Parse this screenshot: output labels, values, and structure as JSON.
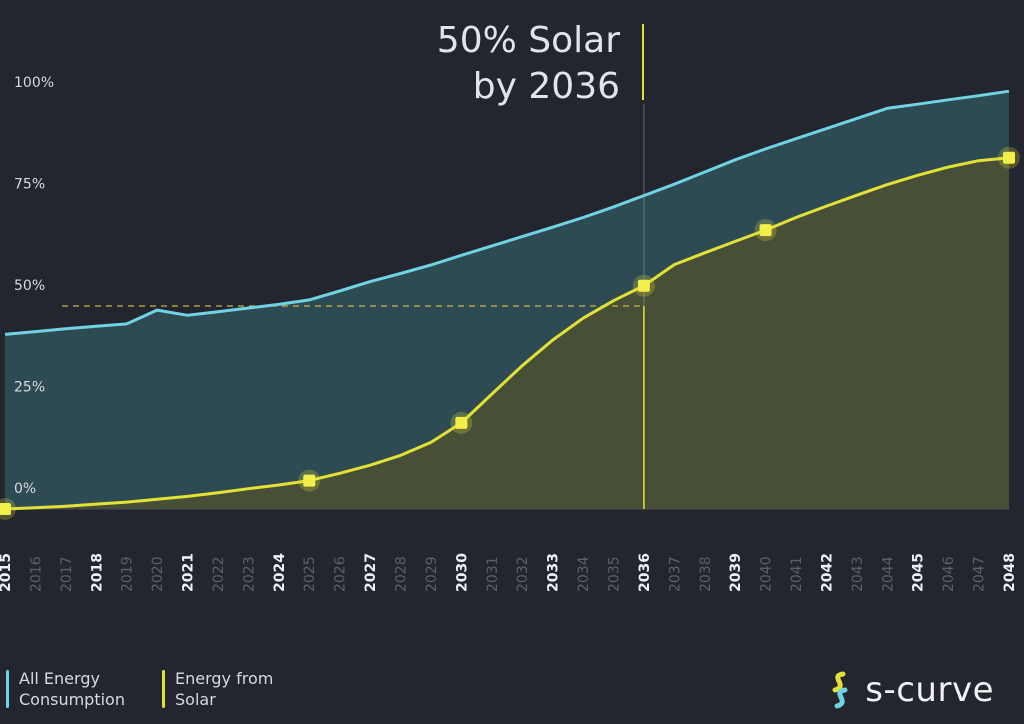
{
  "chart_data": {
    "type": "area",
    "annotation": [
      "50% Solar",
      "by 2036"
    ],
    "y_ticks": [
      "0%",
      "25%",
      "50%",
      "75%",
      "100%"
    ],
    "ylim": [
      0,
      105
    ],
    "xlim": [
      2015,
      2048
    ],
    "x_ticks": [
      "2015",
      "2016",
      "2017",
      "2018",
      "2019",
      "2020",
      "2021",
      "2022",
      "2023",
      "2024",
      "2025",
      "2026",
      "2027",
      "2028",
      "2029",
      "2030",
      "2031",
      "2032",
      "2033",
      "2034",
      "2035",
      "2036",
      "2037",
      "2038",
      "2039",
      "2040",
      "2041",
      "2042",
      "2043",
      "2044",
      "2045",
      "2046",
      "2047",
      "2048"
    ],
    "x_ticks_emphasized": [
      "2015",
      "2018",
      "2021",
      "2024",
      "2027",
      "2030",
      "2033",
      "2036",
      "2039",
      "2042",
      "2045",
      "2048"
    ],
    "reference_line": {
      "y": 50,
      "x": 2036
    },
    "series": [
      {
        "name": "All Energy Consumption",
        "color": "#6fd3e4",
        "x": [
          2015,
          2016,
          2017,
          2018,
          2019,
          2020,
          2021,
          2022,
          2023,
          2024,
          2025,
          2026,
          2027,
          2028,
          2029,
          2030,
          2031,
          2032,
          2033,
          2034,
          2035,
          2036,
          2037,
          2038,
          2039,
          2040,
          2041,
          2042,
          2043,
          2044,
          2045,
          2046,
          2047,
          2048
        ],
        "values": [
          43,
          43.7,
          44.4,
          45,
          45.6,
          49,
          47.7,
          48.6,
          49.5,
          50.4,
          51.5,
          53.7,
          56,
          58,
          60.1,
          62.5,
          64.8,
          67.1,
          69.4,
          71.8,
          74.4,
          77.2,
          80,
          83,
          86,
          88.7,
          91.2,
          93.7,
          96.2,
          98.7,
          99.7,
          100.8,
          101.8,
          102.9
        ]
      },
      {
        "name": "Energy from Solar",
        "color": "#e3e136",
        "x": [
          2015,
          2016,
          2017,
          2018,
          2019,
          2020,
          2021,
          2022,
          2023,
          2024,
          2025,
          2026,
          2027,
          2028,
          2029,
          2030,
          2031,
          2032,
          2033,
          2034,
          2035,
          2036,
          2037,
          2038,
          2039,
          2040,
          2041,
          2042,
          2043,
          2044,
          2045,
          2046,
          2047,
          2048
        ],
        "values": [
          0,
          0.3,
          0.7,
          1.2,
          1.7,
          2.4,
          3.1,
          4,
          5,
          5.9,
          7,
          8.8,
          10.8,
          13.2,
          16.4,
          21.2,
          28.3,
          35.3,
          41.6,
          47,
          51.3,
          55,
          60.2,
          63.1,
          65.9,
          68.7,
          71.8,
          74.6,
          77.3,
          79.9,
          82.2,
          84.2,
          85.8,
          86.5
        ],
        "markers": [
          {
            "x": 2015,
            "y": 0
          },
          {
            "x": 2025,
            "y": 7
          },
          {
            "x": 2030,
            "y": 21.2
          },
          {
            "x": 2036,
            "y": 55
          },
          {
            "x": 2040,
            "y": 68.7
          },
          {
            "x": 2048,
            "y": 86.5
          }
        ]
      }
    ]
  },
  "legend": [
    {
      "label": "All Energy Consumption",
      "color": "#6fd3e4"
    },
    {
      "label": "Energy from Solar",
      "color": "#e3e136"
    }
  ],
  "brand": {
    "name": "s-curve"
  }
}
